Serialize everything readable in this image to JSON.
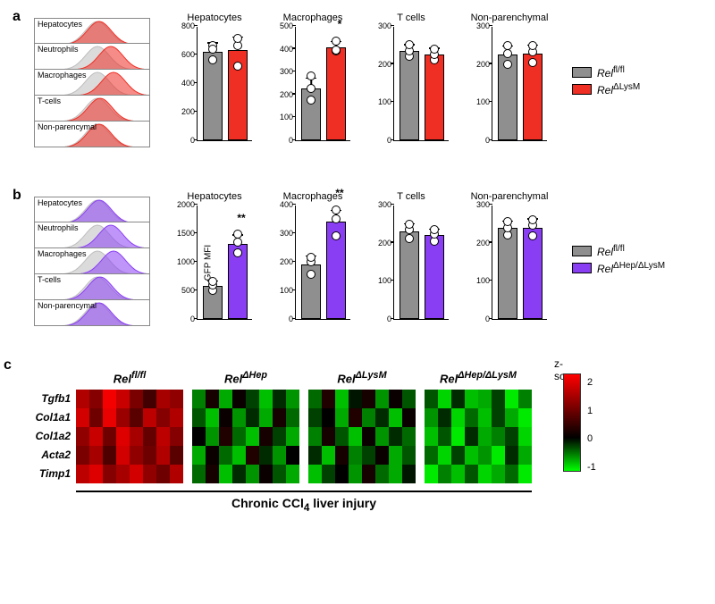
{
  "panels": {
    "a": "a",
    "b": "b",
    "c": "c"
  },
  "histogram_labels": [
    "Hepatocytes",
    "Neutrophils",
    "Macrophages",
    "T-cells",
    "Non-parencymal"
  ],
  "row_a": {
    "color": "#ef2e24",
    "legend": [
      "Rel^fl/fl",
      "Rel^ΔLysM"
    ],
    "charts": [
      {
        "title": "Hepatocytes",
        "ymax": 800,
        "ystep": 200,
        "ctrl": 620,
        "ko": 630,
        "ctrl_err": 50,
        "ko_err": 80,
        "ctrl_pts": [
          560,
          660,
          635
        ],
        "ko_pts": [
          520,
          665,
          710
        ],
        "sig": ""
      },
      {
        "title": "Macrophages",
        "ymax": 500,
        "ystep": 100,
        "ctrl": 225,
        "ko": 405,
        "ctrl_err": 40,
        "ko_err": 20,
        "ctrl_pts": [
          175,
          225,
          280
        ],
        "ko_pts": [
          390,
          395,
          435
        ],
        "sig": "*"
      },
      {
        "title": "T cells",
        "ymax": 300,
        "ystep": 100,
        "ctrl": 235,
        "ko": 225,
        "ctrl_err": 12,
        "ko_err": 12,
        "ctrl_pts": [
          220,
          235,
          250
        ],
        "ko_pts": [
          210,
          225,
          240
        ],
        "sig": ""
      },
      {
        "title": "Non-parenchymal",
        "ymax": 300,
        "ystep": 100,
        "ctrl": 225,
        "ko": 228,
        "ctrl_err": 18,
        "ko_err": 18,
        "ctrl_pts": [
          200,
          228,
          248
        ],
        "ko_pts": [
          205,
          232,
          248
        ],
        "sig": ""
      }
    ]
  },
  "row_b": {
    "color": "#8a3ef4",
    "legend": [
      "Rel^fl/fl",
      "Rel^ΔHep/ΔLysM"
    ],
    "charts": [
      {
        "title": "Hepatocytes",
        "ymax": 2000,
        "ystep": 500,
        "ctrl": 580,
        "ko": 1320,
        "ctrl_err": 60,
        "ko_err": 120,
        "ctrl_pts": [
          500,
          590,
          660
        ],
        "ko_pts": [
          1150,
          1350,
          1480
        ],
        "sig": "**"
      },
      {
        "title": "Macrophages",
        "ymax": 400,
        "ystep": 100,
        "ctrl": 190,
        "ko": 340,
        "ctrl_err": 25,
        "ko_err": 35,
        "ctrl_pts": [
          155,
          200,
          215
        ],
        "ko_pts": [
          290,
          350,
          380
        ],
        "sig": "**"
      },
      {
        "title": "T cells",
        "ymax": 300,
        "ystep": 100,
        "ctrl": 230,
        "ko": 220,
        "ctrl_err": 15,
        "ko_err": 12,
        "ctrl_pts": [
          210,
          235,
          248
        ],
        "ko_pts": [
          205,
          222,
          235
        ],
        "sig": ""
      },
      {
        "title": "Non-parenchymal",
        "ymax": 300,
        "ystep": 100,
        "ctrl": 238,
        "ko": 240,
        "ctrl_err": 15,
        "ko_err": 18,
        "ctrl_pts": [
          220,
          240,
          255
        ],
        "ko_pts": [
          218,
          245,
          260
        ],
        "sig": ""
      }
    ]
  },
  "ylabel": "GFP MFI",
  "ctrl_color": "#8f8f8f",
  "heatmap": {
    "genes": [
      "Tgfb1",
      "Col1a1",
      "Col1a2",
      "Acta2",
      "Timp1"
    ],
    "groups": [
      "Rel^fl/fl",
      "Rel^ΔHep",
      "Rel^ΔLysM",
      "Rel^ΔHep/ΔLysM"
    ],
    "caption": "Chronic CCl₄ liver injury",
    "ztitle": "z-score",
    "zticks": [
      2,
      1,
      0,
      -1
    ],
    "data": [
      [
        [
          1.6,
          1.2,
          2.2,
          1.8,
          1.1,
          0.6,
          1.5,
          1.3
        ],
        [
          -0.6,
          0.2,
          -0.8,
          0.1,
          -0.3,
          -0.9,
          -0.2,
          -0.7
        ],
        [
          -0.5,
          0.3,
          -0.9,
          -0.1,
          0.2,
          -0.7,
          0.1,
          -0.4
        ],
        [
          -0.4,
          -1.0,
          -0.2,
          -0.9,
          -0.8,
          -0.3,
          -1.1,
          -0.6
        ]
      ],
      [
        [
          1.9,
          1.0,
          2.1,
          1.4,
          0.8,
          1.7,
          1.2,
          1.6
        ],
        [
          -0.4,
          -0.9,
          0.1,
          -0.7,
          -0.2,
          -0.8,
          0.2,
          -0.5
        ],
        [
          -0.3,
          0.0,
          -0.8,
          0.3,
          -0.6,
          -0.2,
          -0.9,
          0.1
        ],
        [
          -0.7,
          -0.2,
          -1.0,
          -0.5,
          -0.9,
          -0.3,
          -0.8,
          -1.1
        ]
      ],
      [
        [
          1.3,
          1.8,
          1.0,
          2.0,
          1.5,
          0.9,
          1.7,
          1.2
        ],
        [
          0.0,
          -0.7,
          0.3,
          -0.5,
          -0.9,
          0.2,
          -0.3,
          -0.8
        ],
        [
          -0.6,
          0.2,
          -0.4,
          -0.9,
          0.1,
          -0.7,
          -0.2,
          -0.5
        ],
        [
          -0.9,
          -0.4,
          -1.1,
          -0.2,
          -0.8,
          -0.6,
          -0.3,
          -1.0
        ]
      ],
      [
        [
          1.1,
          1.5,
          0.7,
          1.9,
          1.3,
          1.0,
          1.6,
          0.8
        ],
        [
          -0.8,
          0.1,
          -0.5,
          -0.9,
          0.3,
          -0.2,
          -0.7,
          0.0
        ],
        [
          -0.2,
          -0.9,
          0.2,
          -0.6,
          -0.3,
          0.1,
          -0.8,
          -0.4
        ],
        [
          -0.5,
          -1.0,
          -0.3,
          -0.9,
          -0.7,
          -1.1,
          -0.2,
          -0.8
        ]
      ],
      [
        [
          1.7,
          2.0,
          1.2,
          1.5,
          1.9,
          1.3,
          1.0,
          1.6
        ],
        [
          -0.5,
          0.2,
          -0.9,
          -0.2,
          -0.7,
          0.1,
          -0.4,
          -0.8
        ],
        [
          -0.9,
          -0.3,
          0.0,
          -0.7,
          0.2,
          -0.5,
          -0.8,
          -0.1
        ],
        [
          -1.1,
          -0.6,
          -0.9,
          -0.4,
          -1.0,
          -0.8,
          -0.5,
          -1.1
        ]
      ]
    ],
    "hi_color": "#ff0000",
    "mid_color": "#000000",
    "lo_color": "#00ff00",
    "zmin": -1.2,
    "zmax": 2.3
  }
}
